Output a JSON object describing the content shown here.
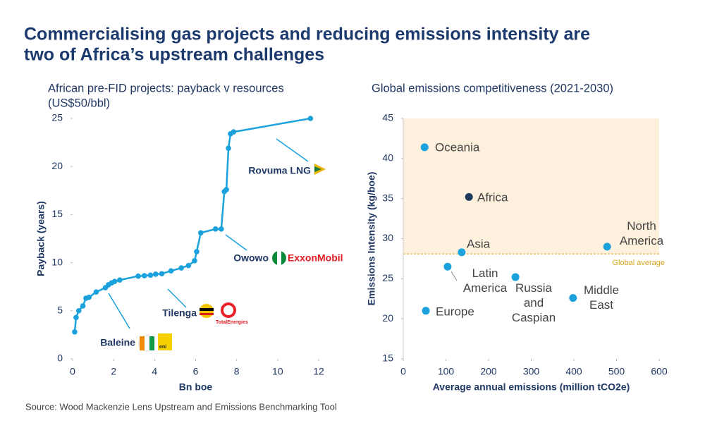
{
  "title": [
    "Commercialising gas projects and reducing emissions intensity are",
    "two of Africa’s upstream challenges"
  ],
  "source": "Source: Wood Mackenzie Lens Upstream and Emissions Benchmarking Tool",
  "chart_data": [
    {
      "type": "line",
      "title": [
        "African pre-FID projects: payback v resources",
        "(US$50/bbl)"
      ],
      "xlabel": "Bn boe",
      "ylabel": "Payback (years)",
      "x": [
        0.1,
        0.17,
        0.3,
        0.5,
        0.65,
        0.8,
        1.15,
        1.6,
        1.75,
        1.9,
        2.05,
        2.3,
        3.2,
        3.5,
        3.8,
        4.05,
        4.35,
        4.8,
        5.3,
        5.65,
        5.95,
        6.05,
        6.25,
        6.97,
        7.25,
        7.4,
        7.5,
        7.6,
        7.7,
        7.85,
        11.6
      ],
      "values": [
        2.8,
        4.3,
        5.0,
        5.5,
        6.3,
        6.4,
        6.95,
        7.4,
        7.7,
        7.9,
        8.05,
        8.2,
        8.6,
        8.65,
        8.7,
        8.8,
        8.85,
        9.15,
        9.45,
        9.7,
        10.2,
        11.15,
        13.1,
        13.5,
        13.5,
        17.4,
        17.6,
        21.9,
        23.4,
        23.6,
        25
      ],
      "color": "#1ba1dc",
      "xlim": [
        0,
        12
      ],
      "xticks": [
        0,
        2,
        4,
        6,
        8,
        10,
        12
      ],
      "ylim": [
        0,
        25
      ],
      "yticks": [
        0,
        5,
        10,
        15,
        20,
        25
      ],
      "annotations": [
        {
          "text": "Rovuma LNG"
        },
        {
          "text": "Owowo",
          "logo": "ExxonMobil"
        },
        {
          "text": "Tilenga",
          "logo": "TotalEnergies"
        },
        {
          "text": "Baleine",
          "logo": "eni"
        }
      ]
    },
    {
      "type": "scatter",
      "title": [
        "Global emissions competitiveness (2021-2030)"
      ],
      "xlabel": "Average annual emissions (million tCO2e)",
      "ylabel": "Emissions Intensity (kg/boe)",
      "labels": [
        "Oceania",
        "Africa",
        "Asia",
        "North America",
        "Latin America",
        "Russia and Caspian",
        "Middle East",
        "Europe"
      ],
      "x": [
        50,
        154,
        137,
        478,
        104,
        263,
        398,
        53
      ],
      "values": [
        41.4,
        35.2,
        28.3,
        29.0,
        26.5,
        25.2,
        22.6,
        21.0
      ],
      "colors": [
        "#1ba1dc",
        "#1f3a5f",
        "#1ba1dc",
        "#1ba1dc",
        "#1ba1dc",
        "#1ba1dc",
        "#1ba1dc",
        "#1ba1dc"
      ],
      "xlim": [
        0,
        600
      ],
      "xticks": [
        0,
        100,
        200,
        300,
        400,
        500,
        600
      ],
      "ylim": [
        15,
        45
      ],
      "yticks": [
        15,
        20,
        25,
        30,
        35,
        40,
        45
      ],
      "reference": {
        "value": 28.1,
        "label": "Global average",
        "color": "#d9a521",
        "shade": "#fdf0dc"
      }
    }
  ]
}
